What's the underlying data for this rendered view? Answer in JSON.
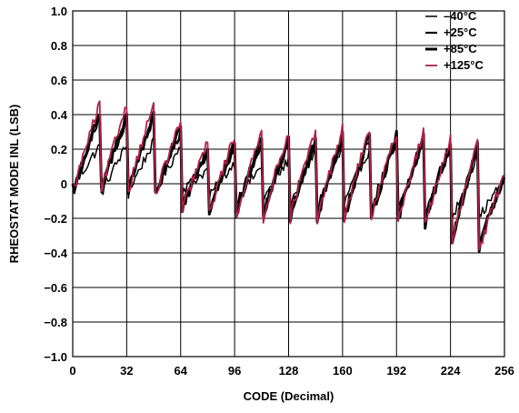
{
  "chart_data": {
    "type": "line",
    "xlabel": "CODE (Decimal)",
    "ylabel": "RHEOSTAT MODE INL (LSB)",
    "xlim": [
      0,
      256
    ],
    "ylim": [
      -1.0,
      1.0
    ],
    "xticks": [
      0,
      32,
      64,
      96,
      128,
      160,
      192,
      224,
      256
    ],
    "xtick_labels": [
      "0",
      "32",
      "64",
      "96",
      "128",
      "160",
      "192",
      "224",
      "256"
    ],
    "yticks": [
      -1.0,
      -0.8,
      -0.6,
      -0.4,
      -0.2,
      0,
      0.2,
      0.4,
      0.6,
      0.8,
      1.0
    ],
    "ytick_labels": [
      "−1.0",
      "−0.8",
      "−0.6",
      "−0.4",
      "−0.2",
      "0",
      "0.2",
      "0.4",
      "0.6",
      "0.8",
      "1.0"
    ],
    "grid": true,
    "legend_position": "top-right",
    "period": 16,
    "series": [
      {
        "name": "–40°C",
        "color": "#000000",
        "stroke": 1.5,
        "peaks": [
          0.22,
          0.22,
          0.24,
          0.22,
          0.08,
          0.12,
          0.1,
          0.14,
          0.18,
          0.2,
          0.2,
          0.22,
          0.22,
          0.2,
          0.16,
          0.02
        ],
        "troughs": [
          -0.02,
          -0.06,
          -0.06,
          -0.06,
          -0.04,
          -0.08,
          -0.1,
          -0.1,
          -0.12,
          -0.14,
          -0.12,
          -0.14,
          -0.16,
          -0.18,
          -0.22,
          -0.2
        ]
      },
      {
        "name": "+25°C",
        "color": "#000000",
        "stroke": 2.2,
        "peaks": [
          0.38,
          0.38,
          0.38,
          0.3,
          0.18,
          0.22,
          0.24,
          0.24,
          0.24,
          0.26,
          0.26,
          0.26,
          0.26,
          0.22,
          0.2,
          0.04
        ],
        "troughs": [
          -0.03,
          -0.04,
          -0.04,
          -0.06,
          -0.14,
          -0.16,
          -0.18,
          -0.18,
          -0.18,
          -0.2,
          -0.2,
          -0.2,
          -0.2,
          -0.22,
          -0.32,
          -0.36
        ]
      },
      {
        "name": "+85°C",
        "color": "#000000",
        "stroke": 3.0,
        "peaks": [
          0.4,
          0.4,
          0.4,
          0.32,
          0.2,
          0.24,
          0.26,
          0.26,
          0.26,
          0.28,
          0.28,
          0.28,
          0.28,
          0.24,
          0.22,
          0.04
        ],
        "troughs": [
          -0.04,
          -0.05,
          -0.05,
          -0.07,
          -0.15,
          -0.17,
          -0.19,
          -0.19,
          -0.19,
          -0.21,
          -0.21,
          -0.21,
          -0.21,
          -0.23,
          -0.34,
          -0.37
        ]
      },
      {
        "name": "+125°C",
        "color": "#b0204a",
        "stroke": 1.8,
        "peaks": [
          0.46,
          0.46,
          0.46,
          0.36,
          0.24,
          0.28,
          0.3,
          0.3,
          0.3,
          0.32,
          0.32,
          0.3,
          0.3,
          0.26,
          0.24,
          0.06
        ],
        "troughs": [
          -0.03,
          -0.05,
          -0.05,
          -0.08,
          -0.16,
          -0.18,
          -0.2,
          -0.2,
          -0.2,
          -0.22,
          -0.22,
          -0.22,
          -0.22,
          -0.25,
          -0.36,
          -0.4
        ]
      }
    ]
  }
}
